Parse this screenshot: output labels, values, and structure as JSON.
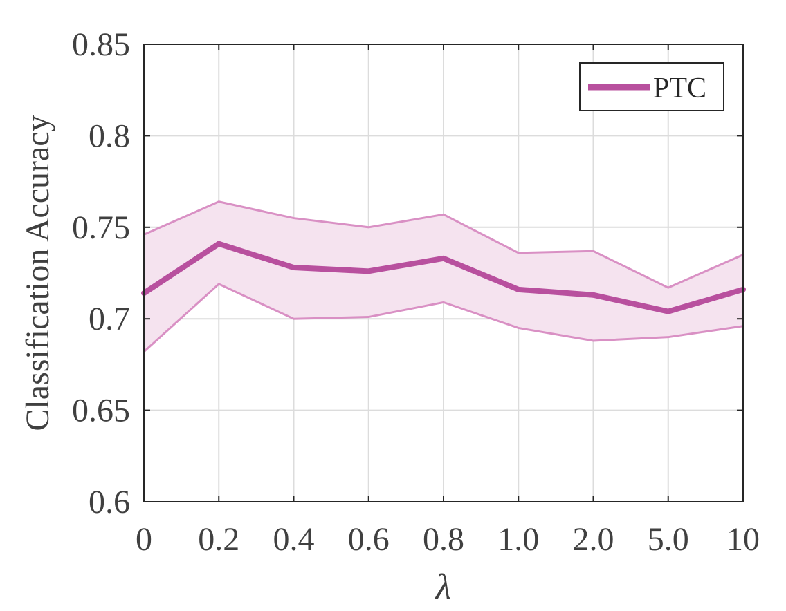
{
  "chart_data": {
    "type": "line",
    "categories": [
      "0",
      "0.2",
      "0.4",
      "0.6",
      "0.8",
      "1.0",
      "2.0",
      "5.0",
      "10"
    ],
    "xlabel": "λ",
    "ylabel": "Classification Accuracy",
    "ylim": [
      0.6,
      0.85
    ],
    "yticks": [
      "0.6",
      "0.65",
      "0.7",
      "0.75",
      "0.8",
      "0.85"
    ],
    "grid": true,
    "legend_position": "top-right",
    "series": [
      {
        "name": "PTC",
        "color": "#b8509e",
        "values": [
          0.714,
          0.741,
          0.728,
          0.726,
          0.733,
          0.716,
          0.713,
          0.704,
          0.716
        ],
        "upper": [
          0.746,
          0.764,
          0.755,
          0.75,
          0.757,
          0.736,
          0.737,
          0.717,
          0.735
        ],
        "lower": [
          0.682,
          0.719,
          0.7,
          0.701,
          0.709,
          0.695,
          0.688,
          0.69,
          0.696
        ]
      }
    ],
    "band_fill_color": "#f5e3ef",
    "band_edge_color": "#d990c4"
  }
}
